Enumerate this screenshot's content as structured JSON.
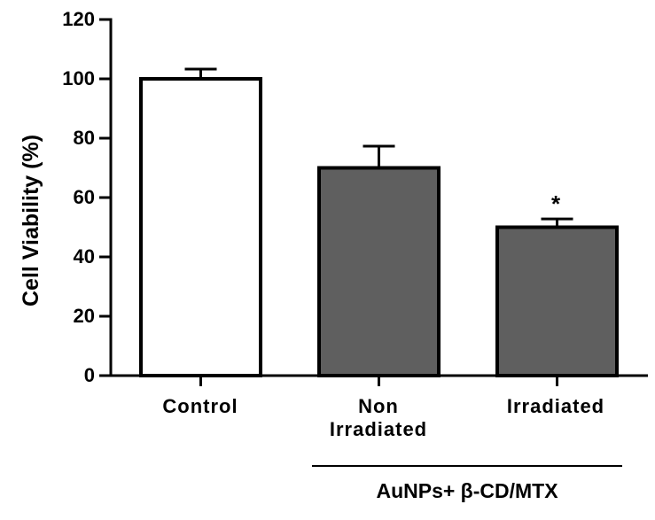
{
  "chart_data": {
    "type": "bar",
    "title": "",
    "xlabel": "",
    "ylabel": "Cell Viability (%)",
    "ylim": [
      0,
      120
    ],
    "yticks": [
      0,
      20,
      40,
      60,
      80,
      100,
      120
    ],
    "grid": false,
    "legend": null,
    "categories": [
      "Control",
      "Non Irradiated",
      "Irradiated"
    ],
    "category_label_lines": [
      [
        "Control"
      ],
      [
        "Non",
        "Irradiated"
      ],
      [
        "Irradiated"
      ]
    ],
    "values": [
      100,
      70,
      50
    ],
    "errors": [
      3.3,
      7.3,
      2.8
    ],
    "bar_colors": [
      "#ffffff",
      "#5f5f5f",
      "#5f5f5f"
    ],
    "annotations": [
      {
        "category": "Irradiated",
        "text": "*"
      }
    ],
    "group_bracket": {
      "label": "AuNPs+ β-CD/MTX",
      "categories": [
        "Non Irradiated",
        "Irradiated"
      ]
    }
  },
  "colors": {
    "axis": "#000000",
    "treated_fill": "#5f5f5f",
    "control_fill": "#ffffff"
  }
}
